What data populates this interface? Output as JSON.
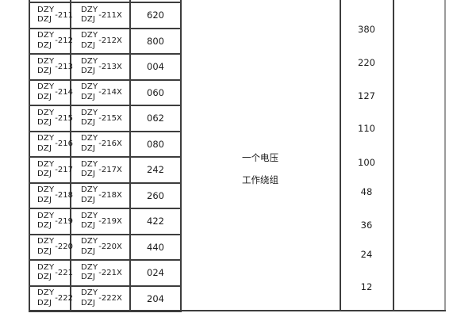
{
  "table": {
    "col1_prefix": [
      "DZY",
      "DZJ"
    ],
    "col2_prefix": [
      "DZY",
      "DZJ"
    ],
    "rows": [
      {
        "model": "-211",
        "variant": "-211X",
        "value": "620"
      },
      {
        "model": "-212",
        "variant": "-212X",
        "value": "800"
      },
      {
        "model": "-213",
        "variant": "-213X",
        "value": "004"
      },
      {
        "model": "-214",
        "variant": "-214X",
        "value": "060"
      },
      {
        "model": "-215",
        "variant": "-215X",
        "value": "062"
      },
      {
        "model": "-216",
        "variant": "-216X",
        "value": "080"
      },
      {
        "model": "-217",
        "variant": "-217X",
        "value": "242"
      },
      {
        "model": "-218",
        "variant": "-218X",
        "value": "260"
      },
      {
        "model": "-219",
        "variant": "-219X",
        "value": "422"
      },
      {
        "model": "-220",
        "variant": "-220X",
        "value": "440"
      },
      {
        "model": "-221",
        "variant": "-221X",
        "value": "024"
      },
      {
        "model": "-222",
        "variant": "-222X",
        "value": "204"
      }
    ],
    "winding_label_lines": [
      "一个电压",
      "工作绕组"
    ],
    "voltages": [
      "380",
      "220",
      "127",
      "110",
      "100",
      "48",
      "36",
      "24",
      "12"
    ]
  },
  "colors": {
    "line_dark": "#3d3d3d",
    "line_gray": "#9b9b9b",
    "text": "#1c1c1c",
    "background": "#ffffff"
  }
}
